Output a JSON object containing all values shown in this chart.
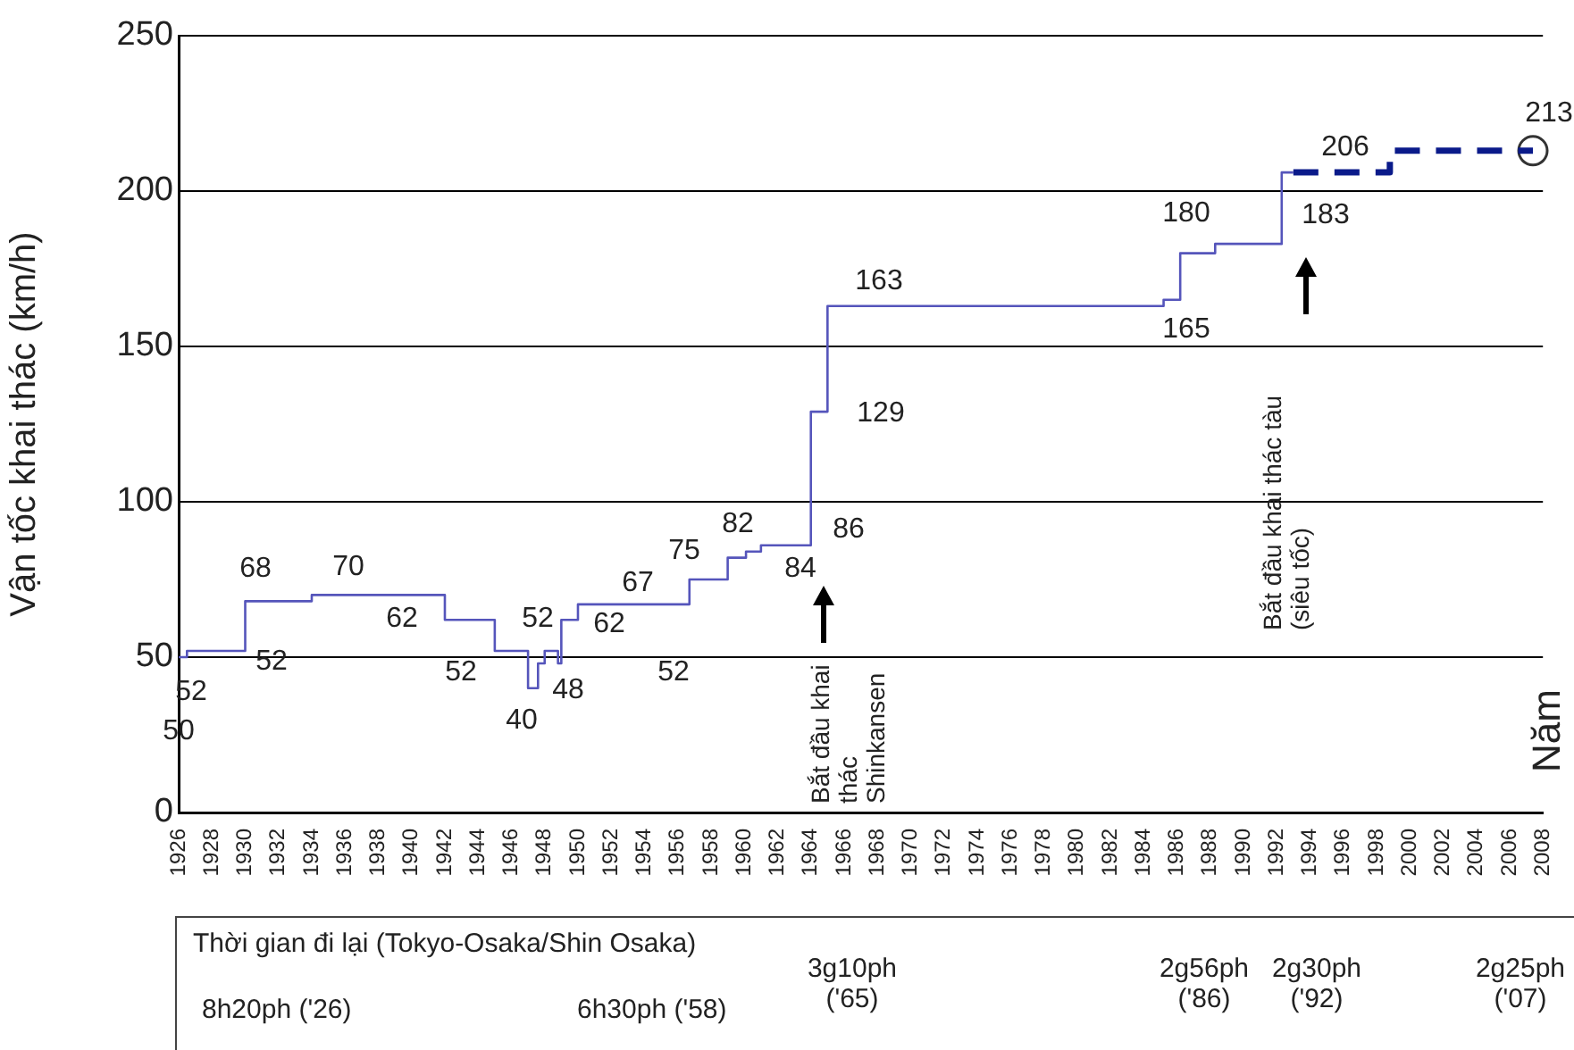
{
  "chart_data": {
    "type": "step",
    "ylabel": "Vận tốc khai thác (km/h)",
    "xlim": [
      1926,
      2008
    ],
    "xticks": [
      1926,
      1928,
      1930,
      1932,
      1934,
      1936,
      1938,
      1940,
      1942,
      1944,
      1946,
      1948,
      1950,
      1952,
      1954,
      1956,
      1958,
      1960,
      1962,
      1964,
      1966,
      1968,
      1970,
      1972,
      1974,
      1976,
      1978,
      1980,
      1982,
      1984,
      1986,
      1988,
      1990,
      1992,
      1994,
      1996,
      1998,
      2000,
      2002,
      2004,
      2006,
      2008
    ],
    "ylim": [
      0,
      250
    ],
    "yticks": [
      0,
      50,
      100,
      150,
      200,
      250
    ],
    "grid": "y",
    "legend": false,
    "series": [
      {
        "type": "step",
        "color": "#5555bb",
        "line_style": "solid",
        "marker": "none",
        "x": [
          1926,
          1926.5,
          1930,
          1934,
          1942,
          1945,
          1947,
          1947.6,
          1948,
          1948.8,
          1949,
          1950,
          1956.7,
          1959,
          1960.1,
          1961,
          1964,
          1965,
          1985.2,
          1986.2,
          1988.3,
          1992.3,
          1993
        ],
        "values": [
          50,
          52,
          68,
          70,
          62,
          52,
          40,
          48,
          52,
          48,
          62,
          67,
          75,
          82,
          84,
          86,
          129,
          163,
          165,
          180,
          183,
          206,
          206
        ]
      },
      {
        "type": "step",
        "color": "#0a1a8a",
        "line_style": "dashed",
        "marker": "none",
        "x": [
          1993,
          1998.8,
          2007.4
        ],
        "values": [
          206,
          213,
          213
        ]
      },
      {
        "type": "scatter",
        "color": "#333333",
        "marker": "circle",
        "x": [
          2007.4
        ],
        "values": [
          213
        ]
      }
    ],
    "annotations": [
      "Bắt đầu khai thác Shinkansen",
      "Bắt đầu khai thác tàu (siêu tốc)",
      "Thời gian đi lại (Tokyo-Osaka/Shin Osaka)",
      "8h20ph ('26)",
      "6h30ph ('58)",
      "3g10ph ('65)",
      "2g56ph ('86)",
      "2g30ph ('92)",
      "2g25ph ('07)",
      "Năm",
      "52",
      "50",
      "52",
      "68",
      "70",
      "62",
      "52",
      "40",
      "52",
      "48",
      "62",
      "67",
      "75",
      "52",
      "82",
      "84",
      "86",
      "129",
      "163",
      "165",
      "180",
      "183",
      "206",
      "213"
    ]
  }
}
